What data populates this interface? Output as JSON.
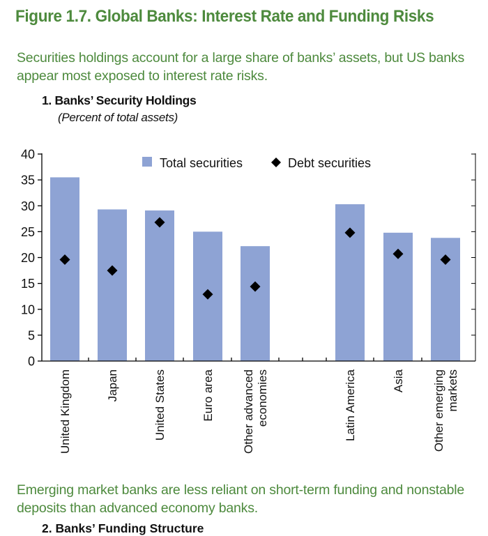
{
  "figure": {
    "title": "Figure 1.7. Global Banks: Interest Rate and Funding Risks",
    "lead_top": "Securities holdings account for a large share of banks’ assets, but US banks appear most exposed to interest rate risks.",
    "lead_bottom": "Emerging market banks are less reliant on short-term funding and nonstable deposits than advanced economy banks.",
    "panel2_title": "2. Banks’ Funding Structure"
  },
  "colors": {
    "bar": "#8ea3d4",
    "marker": "#000000",
    "title": "#4d8a3d"
  },
  "chart_data": {
    "type": "bar",
    "title": "1. Banks’ Security Holdings",
    "subtitle": "(Percent of total assets)",
    "categories": [
      "United Kingdom",
      "Japan",
      "United States",
      "Euro area",
      "Other advanced economies",
      "Latin America",
      "Asia",
      "Other emerging markets"
    ],
    "category_lines": [
      [
        "United Kingdom"
      ],
      [
        "Japan"
      ],
      [
        "United States"
      ],
      [
        "Euro area"
      ],
      [
        "Other advanced",
        "economies"
      ],
      [
        "Latin America"
      ],
      [
        "Asia"
      ],
      [
        "Other emerging",
        "markets"
      ]
    ],
    "series": [
      {
        "name": "Total securities",
        "kind": "bar",
        "values": [
          35.5,
          29.3,
          29.1,
          25.0,
          22.2,
          30.3,
          24.8,
          23.8
        ]
      },
      {
        "name": "Debt securities",
        "kind": "marker",
        "values": [
          19.6,
          17.5,
          26.8,
          12.9,
          14.4,
          24.8,
          20.7,
          19.6
        ]
      }
    ],
    "ylim": [
      0,
      40
    ],
    "yticks": [
      "0",
      "5",
      "10",
      "15",
      "20",
      "25",
      "30",
      "35",
      "40"
    ],
    "legend_position": "top-center",
    "grid": false
  }
}
